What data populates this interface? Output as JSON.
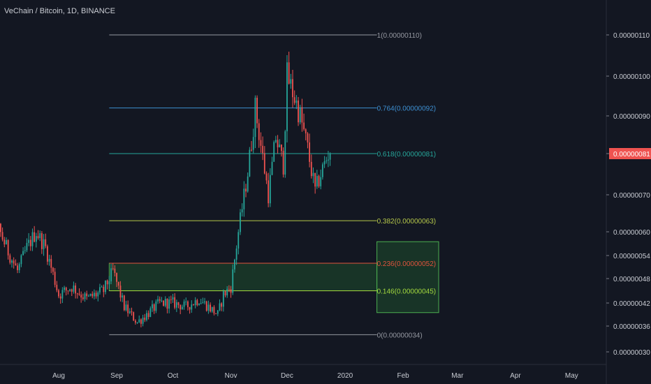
{
  "chart_data": {
    "type": "candlestick",
    "title": "VeChain / Bitcoin, 1D, BINANCE",
    "colors": {
      "background": "#131722",
      "up": "#26a69a",
      "down": "#ef5350",
      "axis_text": "#c9ccd3",
      "current_price_bg": "#ef5350",
      "zone_fill": "#1d4d2c",
      "zone_border": "#4caf50"
    },
    "x_labels": [
      "Aug",
      "Sep",
      "Oct",
      "Nov",
      "Dec",
      "2020",
      "Feb",
      "Mar",
      "Apr",
      "May"
    ],
    "y_ticks": [
      "0.00000110",
      "0.00000100",
      "0.00000090",
      "0.00000081",
      "0.00000070",
      "0.00000060",
      "0.00000054",
      "0.00000048",
      "0.00000042",
      "0.00000036",
      "0.00000030"
    ],
    "current_price": "0.00000081",
    "current_price_value": 8.1e-07,
    "fib_levels": [
      {
        "label": "1(0.00000110)",
        "value": 1.1e-06,
        "color": "#9598a1"
      },
      {
        "label": "0.764(0.00000092)",
        "value": 9.2e-07,
        "color": "#3d8fd1"
      },
      {
        "label": "0.618(0.00000081)",
        "value": 8.1e-07,
        "color": "#26a69a"
      },
      {
        "label": "0.382(0.00000063)",
        "value": 6.3e-07,
        "color": "#b5c74a"
      },
      {
        "label": "0.236(0.00000052)",
        "value": 5.2e-07,
        "color": "#e0533c"
      },
      {
        "label": "0.146(0.00000045)",
        "value": 4.5e-07,
        "color": "#a3d93e"
      },
      {
        "label": "0(0.00000034)",
        "value": 3.4e-07,
        "color": "#9598a1"
      }
    ],
    "fib_range": {
      "start": "2019-08-28",
      "end": "2020-01-18"
    },
    "demand_zone": {
      "start": "2019-08-28",
      "end": "2020-01-18",
      "low": 4.5e-07,
      "high": 5.2e-07
    },
    "target_box": {
      "start": "2020-01-18",
      "end": "2020-02-20",
      "low": 3.95e-07,
      "high": 5.75e-07
    },
    "closes": [
      {
        "date": "2019-06-15",
        "close": 7.8e-07
      },
      {
        "date": "2019-06-20",
        "close": 6.9e-07
      },
      {
        "date": "2019-06-28",
        "close": 6.3e-07
      },
      {
        "date": "2019-07-05",
        "close": 5.5e-07
      },
      {
        "date": "2019-07-10",
        "close": 5e-07
      },
      {
        "date": "2019-07-15",
        "close": 5.6e-07
      },
      {
        "date": "2019-07-20",
        "close": 6e-07
      },
      {
        "date": "2019-07-25",
        "close": 5.6e-07
      },
      {
        "date": "2019-08-01",
        "close": 4.4e-07
      },
      {
        "date": "2019-08-08",
        "close": 4.6e-07
      },
      {
        "date": "2019-08-16",
        "close": 4.3e-07
      },
      {
        "date": "2019-08-25",
        "close": 4.5e-07
      },
      {
        "date": "2019-08-30",
        "close": 5e-07
      },
      {
        "date": "2019-09-05",
        "close": 4.1e-07
      },
      {
        "date": "2019-09-12",
        "close": 3.7e-07
      },
      {
        "date": "2019-09-17",
        "close": 3.9e-07
      },
      {
        "date": "2019-09-24",
        "close": 4.2e-07
      },
      {
        "date": "2019-10-01",
        "close": 4.2e-07
      },
      {
        "date": "2019-10-08",
        "close": 4.1e-07
      },
      {
        "date": "2019-10-15",
        "close": 4.3e-07
      },
      {
        "date": "2019-10-20",
        "close": 4.1e-07
      },
      {
        "date": "2019-10-25",
        "close": 3.9e-07
      },
      {
        "date": "2019-10-28",
        "close": 4.4e-07
      },
      {
        "date": "2019-11-01",
        "close": 4.6e-07
      },
      {
        "date": "2019-11-05",
        "close": 6e-07
      },
      {
        "date": "2019-11-10",
        "close": 7.6e-07
      },
      {
        "date": "2019-11-14",
        "close": 9.2e-07
      },
      {
        "date": "2019-11-18",
        "close": 8e-07
      },
      {
        "date": "2019-11-21",
        "close": 7e-07
      },
      {
        "date": "2019-11-25",
        "close": 8.5e-07
      },
      {
        "date": "2019-11-29",
        "close": 7.8e-07
      },
      {
        "date": "2019-12-01",
        "close": 1e-06
      },
      {
        "date": "2019-12-04",
        "close": 9.6e-07
      },
      {
        "date": "2019-12-08",
        "close": 9e-07
      },
      {
        "date": "2019-12-12",
        "close": 8.2e-07
      },
      {
        "date": "2019-12-16",
        "close": 7.1e-07
      },
      {
        "date": "2019-12-20",
        "close": 7.7e-07
      },
      {
        "date": "2019-12-24",
        "close": 8.2e-07
      }
    ]
  }
}
